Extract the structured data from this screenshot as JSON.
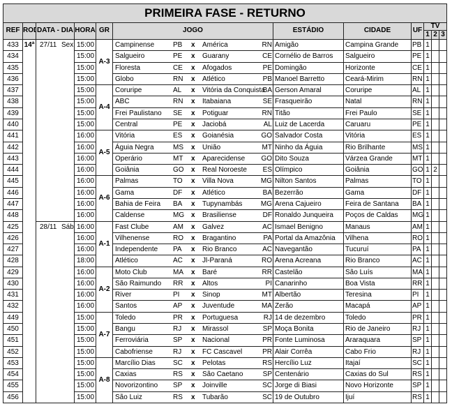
{
  "title": "PRIMEIRA FASE - RETURNO",
  "header": {
    "ref": "REF",
    "rod": "ROD",
    "data": "DATA - DIA",
    "hora": "HORA",
    "gr": "GR",
    "jogo": "JOGO",
    "estadio": "ESTÁDIO",
    "cidade": "CIDADE",
    "uf": "UF",
    "tv": "TV",
    "tv_cols": [
      "1",
      "2",
      "3"
    ]
  },
  "versus": "x",
  "rod": "14ª",
  "dates": [
    {
      "date": "27/11",
      "day": "Sex",
      "groups": [
        {
          "name": "A-3",
          "rows": [
            {
              "ref": "433",
              "hora": "15:00",
              "home": "Campinense",
              "home_uf": "PB",
              "away": "América",
              "away_uf": "RN",
              "stadium": "Amigão",
              "city": "Campina Grande",
              "uf": "PB",
              "tv": [
                "1"
              ]
            },
            {
              "ref": "434",
              "hora": "15:00",
              "home": "Salgueiro",
              "home_uf": "PE",
              "away": "Guarany",
              "away_uf": "CE",
              "stadium": "Cornélio de Barros",
              "city": "Salgueiro",
              "uf": "PE",
              "tv": [
                "1"
              ]
            },
            {
              "ref": "435",
              "hora": "15:00",
              "home": "Floresta",
              "home_uf": "CE",
              "away": "Afogados",
              "away_uf": "PE",
              "stadium": "Domingão",
              "city": "Horizonte",
              "uf": "CE",
              "tv": [
                "1"
              ]
            },
            {
              "ref": "436",
              "hora": "15:00",
              "home": "Globo",
              "home_uf": "RN",
              "away": "Atlético",
              "away_uf": "PB",
              "stadium": "Manoel Barretto",
              "city": "Ceará-Mirim",
              "uf": "RN",
              "tv": [
                "1"
              ]
            }
          ]
        },
        {
          "name": "A-4",
          "rows": [
            {
              "ref": "437",
              "hora": "15:00",
              "home": "Coruripe",
              "home_uf": "AL",
              "away": "Vitória da Conquista",
              "away_uf": "BA",
              "stadium": "Gerson Amaral",
              "city": "Coruripe",
              "uf": "AL",
              "tv": [
                "1"
              ]
            },
            {
              "ref": "438",
              "hora": "15:00",
              "home": "ABC",
              "home_uf": "RN",
              "away": "Itabaiana",
              "away_uf": "SE",
              "stadium": "Frasqueirão",
              "city": "Natal",
              "uf": "RN",
              "tv": [
                "1"
              ]
            },
            {
              "ref": "439",
              "hora": "15:00",
              "home": "Frei Paulistano",
              "home_uf": "SE",
              "away": "Potiguar",
              "away_uf": "RN",
              "stadium": "Titão",
              "city": "Frei Paulo",
              "uf": "SE",
              "tv": [
                "1"
              ]
            },
            {
              "ref": "440",
              "hora": "15:00",
              "home": "Central",
              "home_uf": "PE",
              "away": "Jaciobá",
              "away_uf": "AL",
              "stadium": "Luiz de Lacerda",
              "city": "Caruaru",
              "uf": "PE",
              "tv": [
                "1"
              ]
            }
          ]
        },
        {
          "name": "A-5",
          "rows": [
            {
              "ref": "441",
              "hora": "16:00",
              "home": "Vitória",
              "home_uf": "ES",
              "away": "Goianésia",
              "away_uf": "GO",
              "stadium": "Salvador Costa",
              "city": "Vitória",
              "uf": "ES",
              "tv": [
                "1"
              ]
            },
            {
              "ref": "442",
              "hora": "16:00",
              "home": "Águia Negra",
              "home_uf": "MS",
              "away": "União",
              "away_uf": "MT",
              "stadium": "Ninho da Águia",
              "city": "Rio Brilhante",
              "uf": "MS",
              "tv": [
                "1"
              ]
            },
            {
              "ref": "443",
              "hora": "16:00",
              "home": "Operário",
              "home_uf": "MT",
              "away": "Aparecidense",
              "away_uf": "GO",
              "stadium": "Dito Souza",
              "city": "Várzea Grande",
              "uf": "MT",
              "tv": [
                "1"
              ]
            },
            {
              "ref": "444",
              "hora": "16:00",
              "home": "Goiânia",
              "home_uf": "GO",
              "away": "Real Noroeste",
              "away_uf": "ES",
              "stadium": "Olímpico",
              "city": "Goiânia",
              "uf": "GO",
              "tv": [
                "1",
                "2"
              ]
            }
          ]
        },
        {
          "name": "A-6",
          "rows": [
            {
              "ref": "445",
              "hora": "16:00",
              "home": "Palmas",
              "home_uf": "TO",
              "away": "Villa Nova",
              "away_uf": "MG",
              "stadium": "Nilton Santos",
              "city": "Palmas",
              "uf": "TO",
              "tv": [
                "1"
              ]
            },
            {
              "ref": "446",
              "hora": "16:00",
              "home": "Gama",
              "home_uf": "DF",
              "away": "Atlético",
              "away_uf": "BA",
              "stadium": "Bezerrão",
              "city": "Gama",
              "uf": "DF",
              "tv": [
                "1"
              ]
            },
            {
              "ref": "447",
              "hora": "16:00",
              "home": "Bahia de Feira",
              "home_uf": "BA",
              "away": "Tupynambás",
              "away_uf": "MG",
              "stadium": "Arena Cajueiro",
              "city": "Feira de Santana",
              "uf": "BA",
              "tv": [
                "1"
              ]
            },
            {
              "ref": "448",
              "hora": "16:00",
              "home": "Caldense",
              "home_uf": "MG",
              "away": "Brasiliense",
              "away_uf": "DF",
              "stadium": "Ronaldo Junqueira",
              "city": "Poços de Caldas",
              "uf": "MG",
              "tv": [
                "1"
              ]
            }
          ]
        }
      ]
    },
    {
      "date": "28/11",
      "day": "Sáb",
      "groups": [
        {
          "name": "A-1",
          "rows": [
            {
              "ref": "425",
              "hora": "16:00",
              "home": "Fast Clube",
              "home_uf": "AM",
              "away": "Galvez",
              "away_uf": "AC",
              "stadium": "Ismael Benigno",
              "city": "Manaus",
              "uf": "AM",
              "tv": [
                "1"
              ]
            },
            {
              "ref": "426",
              "hora": "16:00",
              "home": "Vilhenense",
              "home_uf": "RO",
              "away": "Bragantino",
              "away_uf": "PA",
              "stadium": "Portal da Amazônia",
              "city": "Vilhena",
              "uf": "RO",
              "tv": [
                "1"
              ]
            },
            {
              "ref": "427",
              "hora": "16:00",
              "home": "Independente",
              "home_uf": "PA",
              "away": "Rio Branco",
              "away_uf": "AC",
              "stadium": "Navegantão",
              "city": "Tucuruí",
              "uf": "PA",
              "tv": [
                "1"
              ]
            },
            {
              "ref": "428",
              "hora": "18:00",
              "home": "Atlético",
              "home_uf": "AC",
              "away": "Jl-Paraná",
              "away_uf": "RO",
              "stadium": "Arena Acreana",
              "city": "Rio Branco",
              "uf": "AC",
              "tv": [
                "1"
              ]
            }
          ]
        },
        {
          "name": "A-2",
          "rows": [
            {
              "ref": "429",
              "hora": "16:00",
              "home": "Moto Club",
              "home_uf": "MA",
              "away": "Baré",
              "away_uf": "RR",
              "stadium": "Castelão",
              "city": "São Luís",
              "uf": "MA",
              "tv": [
                "1"
              ]
            },
            {
              "ref": "430",
              "hora": "16:00",
              "home": "São Raimundo",
              "home_uf": "RR",
              "away": "Altos",
              "away_uf": "PI",
              "stadium": "Canarinho",
              "city": "Boa Vista",
              "uf": "RR",
              "tv": [
                "1"
              ]
            },
            {
              "ref": "431",
              "hora": "16:00",
              "home": "River",
              "home_uf": "PI",
              "away": "Sinop",
              "away_uf": "MT",
              "stadium": "Albertão",
              "city": "Teresina",
              "uf": "PI",
              "tv": [
                "1"
              ]
            },
            {
              "ref": "432",
              "hora": "16:00",
              "home": "Santos",
              "home_uf": "AP",
              "away": "Juventude",
              "away_uf": "MA",
              "stadium": "Zerão",
              "city": "Macapá",
              "uf": "AP",
              "tv": [
                "1"
              ]
            }
          ]
        },
        {
          "name": "A-7",
          "rows": [
            {
              "ref": "449",
              "hora": "15:00",
              "home": "Toledo",
              "home_uf": "PR",
              "away": "Portuguesa",
              "away_uf": "RJ",
              "stadium": "14 de dezembro",
              "city": "Toledo",
              "uf": "PR",
              "tv": [
                "1"
              ]
            },
            {
              "ref": "450",
              "hora": "15:00",
              "home": "Bangu",
              "home_uf": "RJ",
              "away": "Mirassol",
              "away_uf": "SP",
              "stadium": "Moça Bonita",
              "city": "Rio de Janeiro",
              "uf": "RJ",
              "tv": [
                "1"
              ]
            },
            {
              "ref": "451",
              "hora": "15:00",
              "home": "Ferroviária",
              "home_uf": "SP",
              "away": "Nacional",
              "away_uf": "PR",
              "stadium": "Fonte Luminosa",
              "city": "Araraquara",
              "uf": "SP",
              "tv": [
                "1"
              ]
            },
            {
              "ref": "452",
              "hora": "15:00",
              "home": "Cabofriense",
              "home_uf": "RJ",
              "away": "FC Cascavel",
              "away_uf": "PR",
              "stadium": "Alair Corrêa",
              "city": "Cabo Frio",
              "uf": "RJ",
              "tv": [
                "1"
              ]
            }
          ]
        },
        {
          "name": "A-8",
          "rows": [
            {
              "ref": "453",
              "hora": "15:00",
              "home": "Marcílio Dias",
              "home_uf": "SC",
              "away": "Pelotas",
              "away_uf": "RS",
              "stadium": "Hercílio Luz",
              "city": "Itajaí",
              "uf": "SC",
              "tv": [
                "1"
              ]
            },
            {
              "ref": "454",
              "hora": "15:00",
              "home": "Caxias",
              "home_uf": "RS",
              "away": "São Caetano",
              "away_uf": "SP",
              "stadium": "Centenário",
              "city": "Caxias do Sul",
              "uf": "RS",
              "tv": [
                "1"
              ]
            },
            {
              "ref": "455",
              "hora": "15:00",
              "home": "Novorizontino",
              "home_uf": "SP",
              "away": "Joinville",
              "away_uf": "SC",
              "stadium": "Jorge di Biasi",
              "city": "Novo Horizonte",
              "uf": "SP",
              "tv": [
                "1"
              ]
            },
            {
              "ref": "456",
              "hora": "15:00",
              "home": "São Luiz",
              "home_uf": "RS",
              "away": "Tubarão",
              "away_uf": "SC",
              "stadium": "19 de Outubro",
              "city": "Ijuí",
              "uf": "RS",
              "tv": [
                "1"
              ]
            }
          ]
        }
      ]
    }
  ]
}
